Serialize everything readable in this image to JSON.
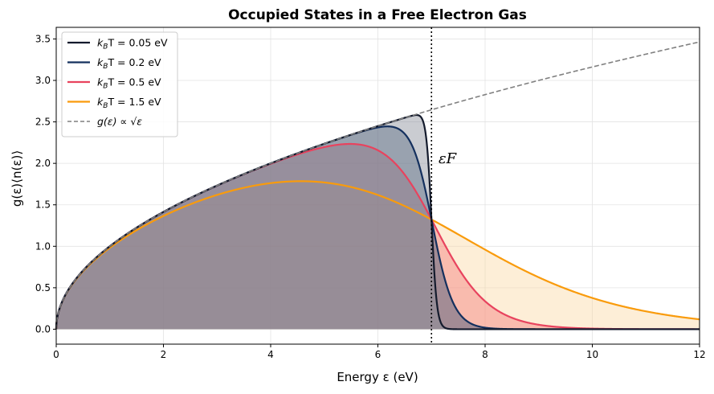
{
  "chart_data": {
    "type": "area",
    "title": "Occupied States in a Free Electron Gas",
    "xlabel": "Energy ε (eV)",
    "ylabel": "g(ε)⟨n(ε)⟩",
    "xlim": [
      0,
      12
    ],
    "ylim": [
      -0.18,
      3.64
    ],
    "xticks": [
      0,
      2,
      4,
      6,
      8,
      10,
      12
    ],
    "yticks": [
      0.0,
      0.5,
      1.0,
      1.5,
      2.0,
      2.5,
      3.0,
      3.5
    ],
    "grid": true,
    "legend_position": "top-left",
    "fermi_energy": 7.0,
    "annotation": "εF",
    "reference_curve": {
      "name": "g(ε) ∝ √ε",
      "color": "#808080",
      "style": "dashed",
      "scale": 1.0
    },
    "series": [
      {
        "name": "kBT = 0.05 eV",
        "kT": 0.05,
        "color": "#141b2d",
        "fill": "#8a8d99"
      },
      {
        "name": "kBT = 0.2 eV",
        "kT": 0.2,
        "color": "#14305e",
        "fill": "#3a5478"
      },
      {
        "name": "kBT = 0.5 eV",
        "kT": 0.5,
        "color": "#e8435e",
        "fill": "#f47c7c"
      },
      {
        "name": "kBT = 1.5 eV",
        "kT": 1.5,
        "color": "#f99b0c",
        "fill": "#fbd9a6"
      }
    ]
  },
  "legend": {
    "items": [
      {
        "prefix": "k",
        "sub": "B",
        "suffix": "T = 0.05 eV"
      },
      {
        "prefix": "k",
        "sub": "B",
        "suffix": "T = 0.2 eV"
      },
      {
        "prefix": "k",
        "sub": "B",
        "suffix": "T = 0.5 eV"
      },
      {
        "prefix": "k",
        "sub": "B",
        "suffix": "T = 1.5 eV"
      },
      {
        "prefix": "g(ε) ∝ √ε",
        "sub": "",
        "suffix": ""
      }
    ]
  }
}
